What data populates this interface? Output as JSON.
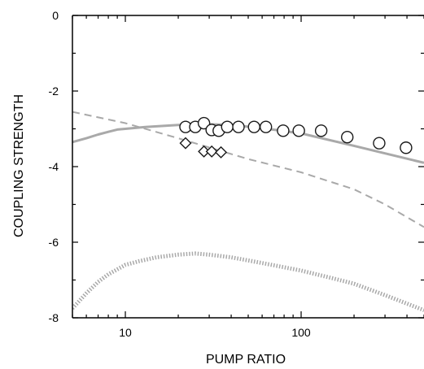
{
  "chart_data": {
    "type": "scatter",
    "xlabel": "PUMP RATIO",
    "ylabel": "COUPLING STRENGTH",
    "xscale": "log",
    "xlim": [
      5,
      500
    ],
    "ylim": [
      -8,
      0
    ],
    "x_ticks": [
      10,
      100
    ],
    "y_ticks": [
      0,
      -2,
      -4,
      -6,
      -8
    ],
    "grid": false,
    "colors": {
      "curve": "#a9a9a9",
      "dashed": "#a9a9a9",
      "dotted": "#a9a9a9",
      "markers": "#1a1a1a"
    },
    "series": [
      {
        "style": "solid-line",
        "points": [
          [
            5,
            -3.35
          ],
          [
            6,
            -3.25
          ],
          [
            7,
            -3.15
          ],
          [
            8,
            -3.08
          ],
          [
            9,
            -3.02
          ],
          [
            10,
            -3.0
          ],
          [
            13,
            -2.95
          ],
          [
            20,
            -2.9
          ],
          [
            30,
            -2.88
          ],
          [
            40,
            -2.9
          ],
          [
            60,
            -2.98
          ],
          [
            100,
            -3.12
          ],
          [
            200,
            -3.45
          ],
          [
            300,
            -3.65
          ],
          [
            500,
            -3.9
          ]
        ]
      },
      {
        "style": "dashed-line",
        "points": [
          [
            5,
            -2.55
          ],
          [
            10,
            -2.85
          ],
          [
            20,
            -3.25
          ],
          [
            50,
            -3.8
          ],
          [
            100,
            -4.15
          ],
          [
            200,
            -4.6
          ],
          [
            300,
            -5.0
          ],
          [
            500,
            -5.6
          ]
        ]
      },
      {
        "style": "dotted-band",
        "points": [
          [
            5,
            -7.75
          ],
          [
            6,
            -7.35
          ],
          [
            7,
            -7.05
          ],
          [
            8,
            -6.85
          ],
          [
            10,
            -6.6
          ],
          [
            12,
            -6.5
          ],
          [
            15,
            -6.4
          ],
          [
            20,
            -6.33
          ],
          [
            25,
            -6.3
          ],
          [
            30,
            -6.33
          ],
          [
            40,
            -6.4
          ],
          [
            60,
            -6.55
          ],
          [
            100,
            -6.75
          ],
          [
            150,
            -6.95
          ],
          [
            200,
            -7.1
          ],
          [
            300,
            -7.4
          ],
          [
            500,
            -7.8
          ]
        ]
      },
      {
        "style": "circle-markers",
        "points": [
          [
            22,
            -2.95
          ],
          [
            25,
            -2.95
          ],
          [
            28,
            -2.85
          ],
          [
            31,
            -3.03
          ],
          [
            34,
            -3.05
          ],
          [
            38,
            -2.95
          ],
          [
            44,
            -2.95
          ],
          [
            54,
            -2.95
          ],
          [
            63,
            -2.95
          ],
          [
            79,
            -3.05
          ],
          [
            97,
            -3.05
          ],
          [
            130,
            -3.05
          ],
          [
            183,
            -3.22
          ],
          [
            278,
            -3.38
          ],
          [
            395,
            -3.5
          ]
        ]
      },
      {
        "style": "diamond-markers",
        "points": [
          [
            22,
            -3.38
          ],
          [
            28,
            -3.6
          ],
          [
            31,
            -3.6
          ],
          [
            35,
            -3.62
          ]
        ]
      }
    ]
  }
}
